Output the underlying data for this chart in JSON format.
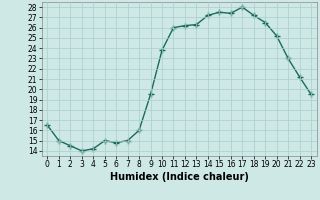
{
  "x": [
    0,
    1,
    2,
    3,
    4,
    5,
    6,
    7,
    8,
    9,
    10,
    11,
    12,
    13,
    14,
    15,
    16,
    17,
    18,
    19,
    20,
    21,
    22,
    23
  ],
  "y": [
    16.5,
    15.0,
    14.5,
    14.0,
    14.2,
    15.0,
    14.8,
    15.0,
    16.0,
    19.5,
    23.8,
    26.0,
    26.2,
    26.3,
    27.2,
    27.5,
    27.4,
    28.0,
    27.2,
    26.5,
    25.2,
    23.0,
    21.2,
    19.5
  ],
  "line_color": "#1a6b5a",
  "marker": "+",
  "marker_size": 4,
  "marker_lw": 1.0,
  "line_width": 1.0,
  "bg_color": "#cde8e5",
  "grid_color": "#aacfcc",
  "xlabel": "Humidex (Indice chaleur)",
  "xlim": [
    -0.5,
    23.5
  ],
  "ylim": [
    13.5,
    28.5
  ],
  "yticks": [
    14,
    15,
    16,
    17,
    18,
    19,
    20,
    21,
    22,
    23,
    24,
    25,
    26,
    27,
    28
  ],
  "xtick_labels": [
    "0",
    "1",
    "2",
    "3",
    "4",
    "5",
    "6",
    "7",
    "8",
    "9",
    "10",
    "11",
    "12",
    "13",
    "14",
    "15",
    "16",
    "17",
    "18",
    "19",
    "20",
    "21",
    "22",
    "23"
  ],
  "tick_fontsize": 5.5,
  "label_fontsize": 7.0
}
